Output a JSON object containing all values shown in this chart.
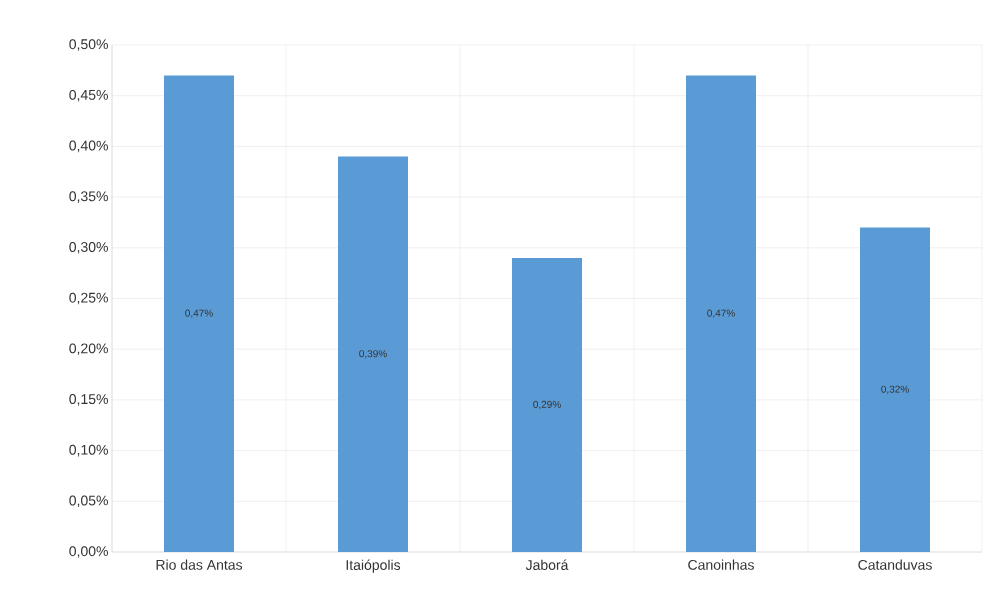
{
  "chart_data": {
    "type": "bar",
    "categories": [
      "Rio das Antas",
      "Itaiópolis",
      "Jaborá",
      "Canoinhas",
      "Catanduvas"
    ],
    "values": [
      0.47,
      0.39,
      0.29,
      0.47,
      0.32
    ],
    "value_labels": [
      "0,47%",
      "0,39%",
      "0,29%",
      "0,47%",
      "0,32%"
    ],
    "color": "#5b9bd5",
    "ylim": [
      0,
      0.5
    ],
    "yticks": [
      {
        "value": 0,
        "label": "0,00%"
      },
      {
        "value": 0.05,
        "label": "0,05%"
      },
      {
        "value": 0.1,
        "label": "0,10%"
      },
      {
        "value": 0.15,
        "label": "0,15%"
      },
      {
        "value": 0.2,
        "label": "0,20%"
      },
      {
        "value": 0.25,
        "label": "0,25%"
      },
      {
        "value": 0.3,
        "label": "0,30%"
      },
      {
        "value": 0.35,
        "label": "0,35%"
      },
      {
        "value": 0.4,
        "label": "0,40%"
      },
      {
        "value": 0.45,
        "label": "0,45%"
      },
      {
        "value": 0.5,
        "label": "0,50%"
      }
    ],
    "grid": true
  }
}
